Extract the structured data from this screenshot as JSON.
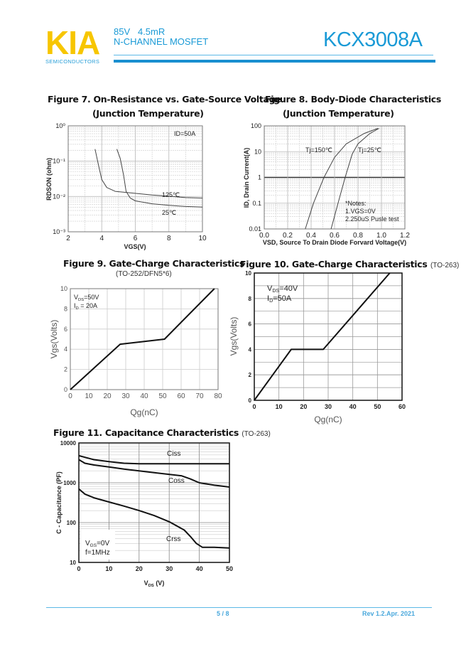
{
  "header": {
    "logo": "KIA",
    "logo_sub": "SEMICONDUCTORS",
    "spec_line1": "85V   4.5mR",
    "spec_line2": "N-CHANNEL MOSFET",
    "part_number": "KCX3008A",
    "brand_color": "#f7c600",
    "accent_color": "#1a9ad6"
  },
  "figures": [
    {
      "title": "Figure 7. On-Resistance vs. Gate-Source Voltage",
      "subtitle": "(Junction Temperature)"
    },
    {
      "title": "Figure 8. Body-Diode Characteristics",
      "subtitle": "(Junction Temperature)"
    },
    {
      "title": "Figure 9.  Gate-Charge Characteristics",
      "subtitle": "(TO-252/DFN5*6)"
    },
    {
      "title": "Figure 10. Gate-Charge Characteristics",
      "subtitle": "(TO-263)"
    },
    {
      "title": "Figure 11. Capacitance Characteristics",
      "subtitle": "(TO-263)"
    }
  ],
  "chart_data": [
    {
      "type": "line",
      "xlabel": "VGS(V)",
      "ylabel": "RDSON  (ohm)",
      "xlim": [
        2,
        10
      ],
      "ylim": [
        0.001,
        1
      ],
      "yscale": "log",
      "grid": true,
      "x_ticks": [
        2,
        4,
        6,
        8,
        10
      ],
      "x_tick_labels": [
        "2",
        "4",
        "6",
        "8",
        "10"
      ],
      "y_ticks": [
        0.001,
        0.01,
        0.1,
        1
      ],
      "y_tick_labels": [
        "10⁻³",
        "10⁻²",
        "10⁻¹",
        "10⁰"
      ],
      "annotations": [
        "ID=50A",
        "125℃",
        "25℃"
      ],
      "series": [
        {
          "name": "125℃",
          "x": [
            3.6,
            3.8,
            4.0,
            4.3,
            4.8,
            5.5,
            7,
            8,
            9,
            10
          ],
          "y": [
            0.22,
            0.08,
            0.03,
            0.018,
            0.014,
            0.013,
            0.011,
            0.0102,
            0.0093,
            0.009
          ]
        },
        {
          "name": "25℃",
          "x": [
            4.9,
            5.1,
            5.3,
            5.45,
            5.7,
            6,
            7,
            8,
            9,
            10
          ],
          "y": [
            0.22,
            0.12,
            0.04,
            0.014,
            0.009,
            0.0075,
            0.0062,
            0.0056,
            0.0052,
            0.005
          ]
        }
      ]
    },
    {
      "type": "line",
      "xlabel": "VSD, Source To Drain Diode Forvard Voltage(V)",
      "ylabel": "ID,  Drain Current(A)",
      "xlim": [
        0,
        1.2
      ],
      "ylim": [
        0.01,
        100
      ],
      "yscale": "log",
      "grid": true,
      "x_ticks": [
        0,
        0.2,
        0.4,
        0.6,
        0.8,
        1.0,
        1.2
      ],
      "x_tick_labels": [
        "0.0",
        "0.2",
        "0.4",
        "0.6",
        "0.8",
        "1.0",
        "1.2"
      ],
      "y_ticks": [
        0.01,
        0.1,
        1,
        10,
        100
      ],
      "y_tick_labels": [
        "0.01",
        "0.1",
        "1",
        "10",
        "100"
      ],
      "annotations": [
        "Tj=150℃",
        "Tj=25℃",
        "*Notes:",
        "1.VGS=0V",
        "2.250uS Pusle test"
      ],
      "series": [
        {
          "name": "Tj=150℃",
          "x": [
            0.35,
            0.42,
            0.51,
            0.6,
            0.7,
            0.85,
            0.97
          ],
          "y": [
            0.01,
            0.1,
            1,
            6,
            20,
            50,
            80
          ]
        },
        {
          "name": "Tj=25℃",
          "x": [
            0.57,
            0.63,
            0.69,
            0.75,
            0.8,
            0.9,
            0.98
          ],
          "y": [
            0.01,
            0.1,
            1,
            8,
            20,
            50,
            80
          ]
        }
      ]
    },
    {
      "type": "line",
      "xlabel": "Qg(nC)",
      "ylabel": "Vgs(Volts)",
      "xlim": [
        0,
        80
      ],
      "ylim": [
        0,
        10
      ],
      "yscale": "linear",
      "grid": true,
      "x_ticks": [
        0,
        10,
        20,
        30,
        40,
        50,
        60,
        70,
        80
      ],
      "x_tick_labels": [
        "0",
        "10",
        "20",
        "30",
        "40",
        "50",
        "60",
        "70",
        "80"
      ],
      "y_ticks": [
        0,
        2,
        4,
        6,
        8,
        10
      ],
      "y_tick_labels": [
        "0",
        "2",
        "4",
        "6",
        "8",
        "10"
      ],
      "annotations": [
        [
          "V",
          "DS",
          "=50V"
        ],
        [
          "I",
          "D",
          " = 20A"
        ]
      ],
      "series": [
        {
          "x": [
            0,
            27,
            51,
            78
          ],
          "y": [
            0,
            4.5,
            5,
            10
          ]
        }
      ]
    },
    {
      "type": "line",
      "xlabel": "Qg(nC)",
      "ylabel": "Vgs(Volts)",
      "xlim": [
        0,
        60
      ],
      "ylim": [
        0,
        10
      ],
      "yscale": "linear",
      "grid": true,
      "x_ticks": [
        0,
        10,
        20,
        30,
        40,
        50,
        60
      ],
      "x_tick_labels": [
        "0",
        "10",
        "20",
        "30",
        "40",
        "50",
        "60"
      ],
      "y_ticks": [
        0,
        2,
        4,
        6,
        8,
        10
      ],
      "y_tick_labels": [
        "0",
        "2",
        "4",
        "6",
        "8",
        "10"
      ],
      "annotations": [
        [
          "V",
          "DS",
          "=40V"
        ],
        [
          "I",
          "D",
          "=50A"
        ]
      ],
      "series": [
        {
          "x": [
            0,
            15,
            28,
            55
          ],
          "y": [
            0,
            4,
            4,
            10
          ]
        }
      ]
    },
    {
      "type": "line",
      "xlabel": "VDS (V)",
      "ylabel": "C - Capacitance (PF)",
      "xlim": [
        0,
        50
      ],
      "ylim": [
        10,
        10000
      ],
      "yscale": "log",
      "grid": true,
      "x_ticks": [
        0,
        10,
        20,
        30,
        40,
        50
      ],
      "x_tick_labels": [
        "0",
        "10",
        "20",
        "30",
        "40",
        "50"
      ],
      "y_ticks": [
        10,
        100,
        1000,
        10000
      ],
      "y_tick_labels": [
        "10",
        "100",
        "1000",
        "10000"
      ],
      "annotations": [
        "Ciss",
        "Coss",
        "Crss",
        [
          "V",
          "GS",
          "=0V"
        ],
        [
          "f=1MHz",
          "",
          ""
        ]
      ],
      "series": [
        {
          "name": "Ciss",
          "x": [
            0,
            5,
            10,
            15,
            20,
            30,
            50
          ],
          "y": [
            4800,
            3800,
            3400,
            3100,
            3000,
            3000,
            3000
          ]
        },
        {
          "name": "Coss",
          "x": [
            0,
            2,
            5,
            10,
            15,
            25,
            34,
            37,
            40,
            45,
            50
          ],
          "y": [
            3800,
            3100,
            2800,
            2500,
            2200,
            1800,
            1500,
            1250,
            1000,
            870,
            780
          ]
        },
        {
          "name": "Crss",
          "x": [
            0,
            2,
            5,
            10,
            15,
            20,
            25,
            30,
            35,
            37,
            39,
            41,
            45,
            50
          ],
          "y": [
            700,
            520,
            420,
            330,
            260,
            200,
            150,
            105,
            65,
            45,
            30,
            24,
            24,
            23
          ]
        }
      ]
    }
  ],
  "footer": {
    "page": "5 / 8",
    "revision": "Rev 1.2.Apr. 2021"
  }
}
